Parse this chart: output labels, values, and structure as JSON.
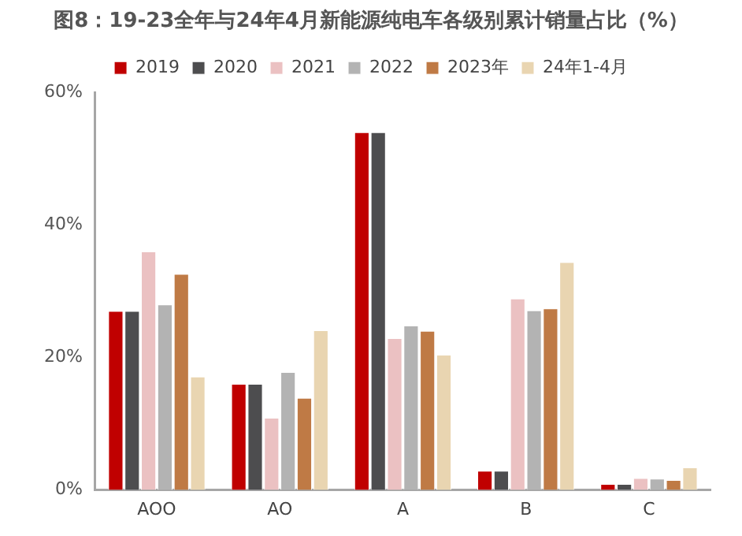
{
  "chart_data": {
    "type": "bar",
    "title": "图8：19-23全年与24年4月新能源纯电车各级别累计销量占比（%）",
    "categories": [
      "AOO",
      "AO",
      "A",
      "B",
      "C"
    ],
    "series": [
      {
        "name": "2019",
        "color": "#c00000",
        "values": [
          27,
          16,
          54,
          2.9,
          0.9
        ]
      },
      {
        "name": "2020",
        "color": "#4d4d4f",
        "values": [
          27,
          16,
          54,
          2.9,
          0.9
        ]
      },
      {
        "name": "2021",
        "color": "#ebc1c2",
        "values": [
          36,
          10.9,
          22.9,
          28.9,
          1.8
        ]
      },
      {
        "name": "2022",
        "color": "#b3b3b3",
        "values": [
          28,
          17.8,
          24.8,
          27.1,
          1.7
        ]
      },
      {
        "name": "2023年",
        "color": "#bf7a45",
        "values": [
          32.6,
          13.9,
          24,
          27.4,
          1.5
        ]
      },
      {
        "name": "24年1-4月",
        "color": "#e9d5b1",
        "values": [
          17.1,
          24.1,
          20.4,
          34.4,
          3.4
        ]
      }
    ],
    "ylim": [
      0,
      60
    ],
    "yticks": [
      {
        "value": 0,
        "label": "0%"
      },
      {
        "value": 20,
        "label": "20%"
      },
      {
        "value": 40,
        "label": "40%"
      },
      {
        "value": 60,
        "label": "60%"
      }
    ],
    "grid": false,
    "legend": "top"
  }
}
